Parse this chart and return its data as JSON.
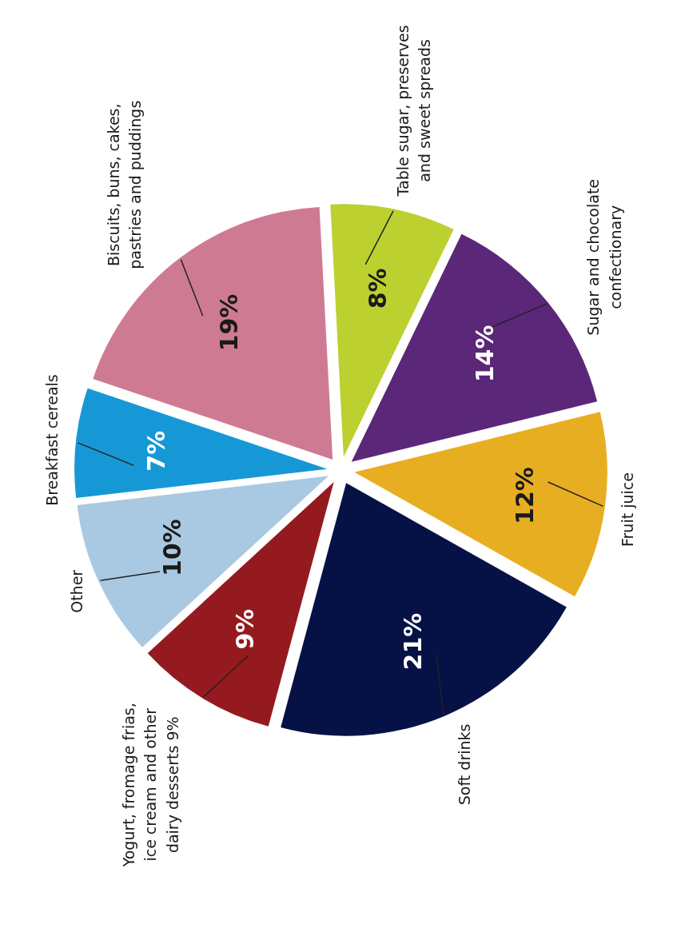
{
  "chart_data": {
    "type": "pie",
    "categories": [
      "Soft drinks",
      "Fruit juice",
      "Sugar and chocolate confectionary",
      "Table sugar, preserves and sweet spreads",
      "Biscuits, buns, cakes, pastries and puddings",
      "Breakfast cereals",
      "Other",
      "Yogurt, fromage frias, ice cream and other dairy desserts 9%"
    ],
    "values": [
      21,
      12,
      14,
      8,
      19,
      7,
      10,
      9
    ],
    "colors": [
      "#061245",
      "#e8ae22",
      "#5b2778",
      "#bcd030",
      "#cf7a93",
      "#1798d6",
      "#a9c9e2",
      "#951a1f"
    ],
    "value_labels": [
      "21%",
      "12%",
      "14%",
      "8%",
      "19%",
      "7%",
      "10%",
      "9%"
    ]
  }
}
